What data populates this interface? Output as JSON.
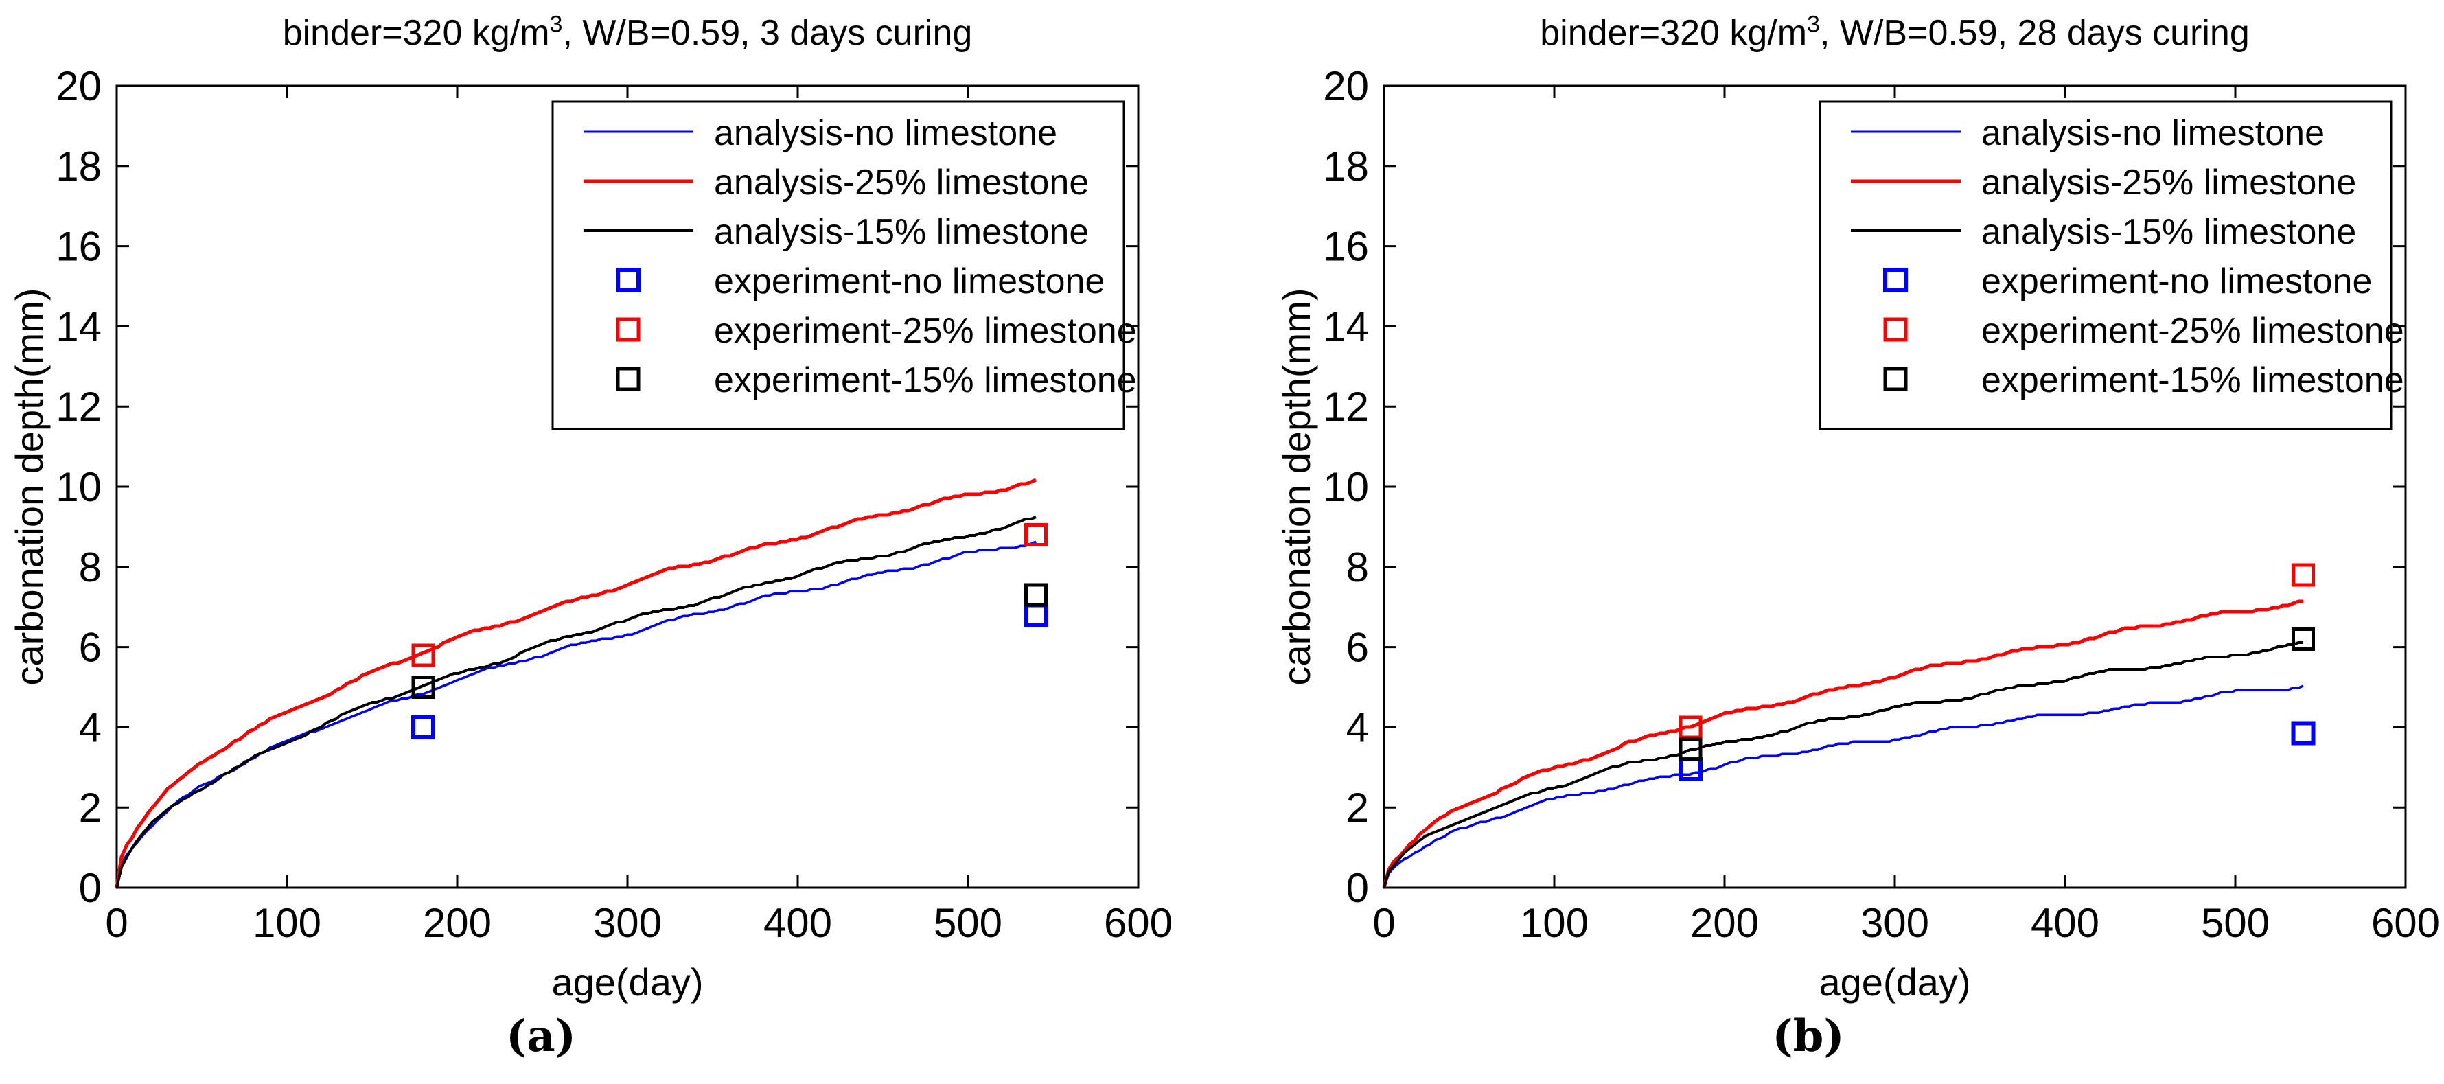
{
  "figure_background": "#ffffff",
  "chart_data": [
    {
      "id": "a",
      "type": "line+scatter",
      "caption": "(a)",
      "title": {
        "prefix": "binder=320 kg/m",
        "sup": "3",
        "suffix": ", W/B=0.59, 3 days curing"
      },
      "xlabel": "age(day)",
      "ylabel": "carbonation depth(mm)",
      "xlim": [
        0,
        600
      ],
      "ylim": [
        0,
        20
      ],
      "xticks": [
        0,
        100,
        200,
        300,
        400,
        500,
        600
      ],
      "yticks": [
        0,
        2,
        4,
        6,
        8,
        10,
        12,
        14,
        16,
        18,
        20
      ],
      "grid": false,
      "legend_position": "upper-right",
      "legend_entries": [
        {
          "label": "analysis-no limestone",
          "kind": "line",
          "color": "#0000ff",
          "stroke": 3
        },
        {
          "label": "analysis-25% limestone",
          "kind": "line",
          "color": "#ff0000",
          "stroke": 5
        },
        {
          "label": "analysis-15% limestone",
          "kind": "line",
          "color": "#000000",
          "stroke": 4
        },
        {
          "label": "experiment-no limestone",
          "kind": "square",
          "color": "#0000ff",
          "stroke": 6
        },
        {
          "label": "experiment-25% limestone",
          "kind": "square",
          "color": "#ff0000",
          "stroke": 5
        },
        {
          "label": "experiment-15% limestone",
          "kind": "square",
          "color": "#000000",
          "stroke": 5
        }
      ],
      "analysis_series": [
        {
          "name": "analysis-no limestone",
          "color": "#0000ff",
          "stroke": 3.5,
          "model": {
            "k": 0.336,
            "p": 0.516
          },
          "t_end": 540,
          "values_at": {
            "180": 4.9,
            "360": 6.9,
            "540": 8.65
          }
        },
        {
          "name": "analysis-25% limestone",
          "color": "#ff0000",
          "stroke": 5,
          "model": {
            "k": 0.4376,
            "p": 0.5
          },
          "t_end": 540,
          "values_at": {
            "180": 5.9,
            "360": 8.3,
            "540": 10.2
          }
        },
        {
          "name": "analysis-15% limestone",
          "color": "#000000",
          "stroke": 4,
          "model": {
            "k": 0.2958,
            "p": 0.546
          },
          "t_end": 540,
          "values_at": {
            "180": 5.0,
            "360": 7.4,
            "540": 9.2
          }
        }
      ],
      "experiment_series": [
        {
          "name": "experiment-no limestone",
          "color": "#0000ff",
          "stroke": 6,
          "points": [
            [
              180,
              4.0
            ],
            [
              540,
              6.8
            ]
          ]
        },
        {
          "name": "experiment-25% limestone",
          "color": "#ff0000",
          "stroke": 5,
          "points": [
            [
              180,
              5.8
            ],
            [
              540,
              8.8
            ]
          ]
        },
        {
          "name": "experiment-15% limestone",
          "color": "#000000",
          "stroke": 5,
          "points": [
            [
              180,
              5.0
            ],
            [
              540,
              7.3
            ]
          ]
        }
      ]
    },
    {
      "id": "b",
      "type": "line+scatter",
      "caption": "(b)",
      "title": {
        "prefix": "binder=320 kg/m",
        "sup": "3",
        "suffix": ", W/B=0.59, 28 days curing"
      },
      "xlabel": "age(day)",
      "ylabel": "carbonation depth(mm)",
      "xlim": [
        0,
        600
      ],
      "ylim": [
        0,
        20
      ],
      "xticks": [
        0,
        100,
        200,
        300,
        400,
        500,
        600
      ],
      "yticks": [
        0,
        2,
        4,
        6,
        8,
        10,
        12,
        14,
        16,
        18,
        20
      ],
      "grid": false,
      "legend_position": "upper-right",
      "legend_entries": [
        {
          "label": "analysis-no limestone",
          "kind": "line",
          "color": "#0000ff",
          "stroke": 3
        },
        {
          "label": "analysis-25% limestone",
          "kind": "line",
          "color": "#ff0000",
          "stroke": 5
        },
        {
          "label": "analysis-15% limestone",
          "kind": "line",
          "color": "#000000",
          "stroke": 4
        },
        {
          "label": "experiment-no limestone",
          "kind": "square",
          "color": "#0000ff",
          "stroke": 6
        },
        {
          "label": "experiment-25% limestone",
          "kind": "square",
          "color": "#ff0000",
          "stroke": 5
        },
        {
          "label": "experiment-15% limestone",
          "kind": "square",
          "color": "#000000",
          "stroke": 5
        }
      ],
      "analysis_series": [
        {
          "name": "analysis-no limestone",
          "color": "#0000ff",
          "stroke": 3.5,
          "model": {
            "k": 0.2165,
            "p": 0.5
          },
          "t_end": 540,
          "values_at": {
            "180": 2.9,
            "360": 4.1,
            "540": 5.0
          }
        },
        {
          "name": "analysis-25% limestone",
          "color": "#ff0000",
          "stroke": 5,
          "model": {
            "k": 0.2716,
            "p": 0.52
          },
          "t_end": 540,
          "values_at": {
            "180": 4.05,
            "360": 5.8,
            "540": 7.2
          }
        },
        {
          "name": "analysis-15% limestone",
          "color": "#000000",
          "stroke": 4,
          "model": {
            "k": 0.2287,
            "p": 0.521
          },
          "t_end": 540,
          "values_at": {
            "180": 3.4,
            "360": 4.9,
            "540": 6.05
          }
        }
      ],
      "experiment_series": [
        {
          "name": "experiment-no limestone",
          "color": "#0000ff",
          "stroke": 6,
          "points": [
            [
              180,
              2.95
            ],
            [
              540,
              3.85
            ]
          ]
        },
        {
          "name": "experiment-25% limestone",
          "color": "#ff0000",
          "stroke": 5,
          "points": [
            [
              180,
              4.0
            ],
            [
              540,
              7.8
            ]
          ]
        },
        {
          "name": "experiment-15% limestone",
          "color": "#000000",
          "stroke": 5,
          "points": [
            [
              180,
              3.45
            ],
            [
              540,
              6.2
            ]
          ]
        }
      ]
    }
  ]
}
